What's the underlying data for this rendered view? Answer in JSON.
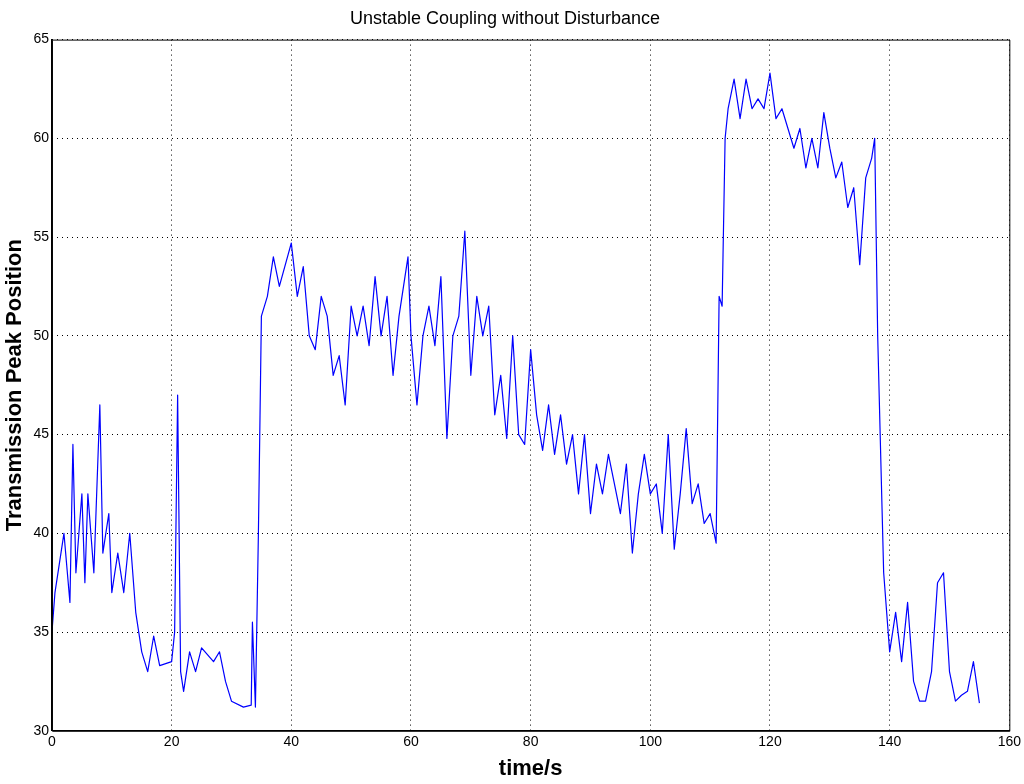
{
  "chart_data": {
    "type": "line",
    "title": "Unstable Coupling without Disturbance",
    "xlabel": "time/s",
    "ylabel": "Transmission Peak Position",
    "xlim": [
      0,
      160
    ],
    "xticks": [
      0,
      20,
      40,
      60,
      80,
      100,
      120,
      140,
      160
    ],
    "ylim": [
      30,
      65
    ],
    "yticks": [
      30,
      35,
      40,
      45,
      50,
      55,
      60,
      65
    ],
    "grid": true,
    "line_style": "solid",
    "marker": "none",
    "series": [
      {
        "color": "#0000ff",
        "x": [
          0,
          0.5,
          1,
          2,
          3,
          3.5,
          4,
          5,
          5.5,
          6,
          7,
          8,
          8.5,
          9.5,
          10,
          11,
          12,
          13,
          14,
          15,
          16,
          17,
          18,
          20,
          20.5,
          21,
          21.5,
          22,
          23,
          24,
          25,
          27,
          28,
          29,
          30,
          32,
          33.3,
          33.5,
          34,
          34.5,
          35,
          36,
          37,
          38,
          40,
          41,
          42,
          43,
          44,
          45,
          46,
          47,
          48,
          49,
          50,
          51,
          52,
          53,
          54,
          55,
          56,
          57,
          58,
          59,
          59.5,
          60,
          61,
          62,
          63,
          64,
          65,
          66,
          67,
          68,
          69,
          70,
          71,
          72,
          73,
          74,
          75,
          76,
          77,
          78,
          79,
          80,
          81,
          82,
          83,
          84,
          85,
          86,
          87,
          88,
          89,
          90,
          91,
          92,
          93,
          94,
          95,
          96,
          97,
          98,
          99,
          100,
          101,
          102,
          103,
          104,
          105,
          106,
          107,
          108,
          109,
          110,
          111,
          111.5,
          112,
          112.5,
          113,
          114,
          115,
          116,
          117,
          118,
          119,
          120,
          121,
          122,
          123,
          124,
          125,
          126,
          127,
          128,
          129,
          130,
          131,
          132,
          133,
          134,
          135,
          136,
          137,
          137.5,
          138,
          139,
          140,
          141,
          142,
          143,
          144,
          145,
          146,
          147,
          148,
          149,
          150,
          151,
          152,
          153,
          154,
          155
        ],
        "values": [
          35,
          37,
          38,
          40,
          36.5,
          44.5,
          38,
          42,
          37.5,
          42,
          38,
          46.5,
          39,
          41,
          37,
          39,
          37,
          40,
          36,
          34,
          33,
          34.8,
          33.3,
          33.5,
          35,
          47,
          33,
          32,
          34,
          33,
          34.2,
          33.5,
          34,
          32.5,
          31.5,
          31.2,
          31.3,
          35.5,
          31.2,
          40,
          51,
          52,
          54,
          52.5,
          54.7,
          52,
          53.5,
          50,
          49.3,
          52,
          51,
          48,
          49,
          46.5,
          51.5,
          50,
          51.5,
          49.5,
          53,
          50,
          52,
          48,
          51,
          53,
          54,
          50,
          46.5,
          50,
          51.5,
          49.5,
          53,
          44.8,
          50,
          51,
          55.3,
          48,
          52,
          50,
          51.5,
          46,
          48,
          44.8,
          50,
          45,
          44.5,
          49.3,
          46,
          44.2,
          46.5,
          44,
          46,
          43.5,
          45,
          42,
          45,
          41,
          43.5,
          42,
          44,
          42.5,
          41,
          43.5,
          39,
          42,
          44,
          42,
          42.5,
          40,
          45,
          39.2,
          42,
          45.3,
          41.5,
          42.5,
          40.5,
          41,
          39.5,
          52,
          51.5,
          60,
          61.5,
          63,
          61,
          63,
          61.5,
          62,
          61.5,
          63.3,
          61,
          61.5,
          60.5,
          59.5,
          60.5,
          58.5,
          60,
          58.5,
          61.3,
          59.5,
          58,
          58.8,
          56.5,
          57.5,
          53.6,
          58,
          59,
          60,
          50,
          38,
          34,
          36,
          33.5,
          36.5,
          32.5,
          31.5,
          31.5,
          33,
          37.5,
          38,
          33,
          31.5,
          31.8,
          32,
          33.5,
          31.4
        ]
      }
    ]
  }
}
